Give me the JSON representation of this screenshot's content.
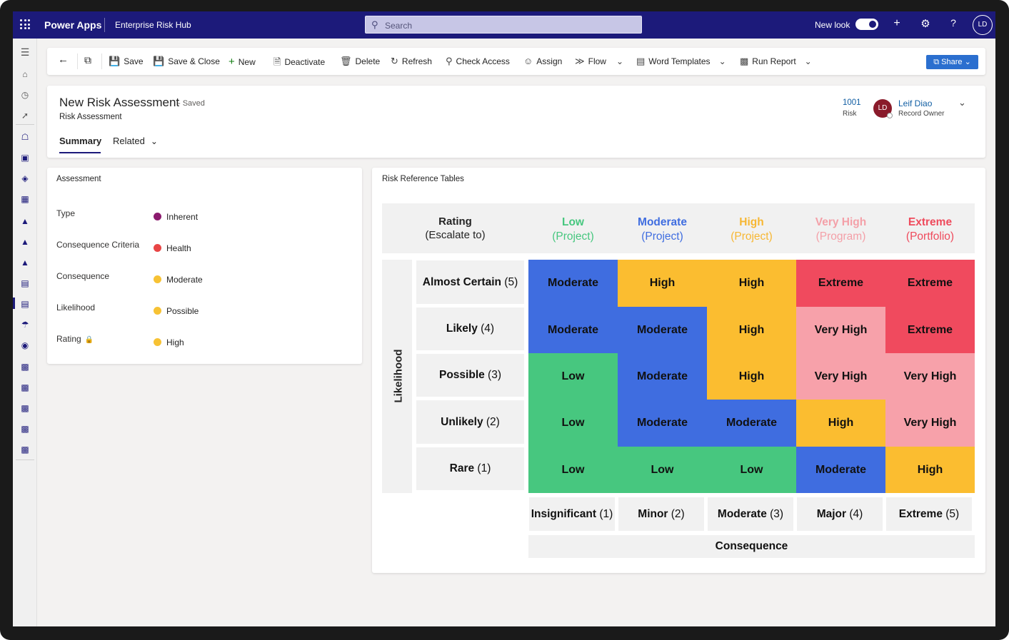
{
  "topbar": {
    "app_name": "Power Apps",
    "env_name": "Enterprise Risk Hub",
    "search_placeholder": "Search",
    "new_look_label": "New look",
    "new_look_on": true,
    "user_initials": "LD"
  },
  "commands": {
    "save": "Save",
    "save_close": "Save & Close",
    "new": "New",
    "deactivate": "Deactivate",
    "delete": "Delete",
    "refresh": "Refresh",
    "check_access": "Check Access",
    "assign": "Assign",
    "flow": "Flow",
    "word_templates": "Word Templates",
    "run_report": "Run Report",
    "share": "Share"
  },
  "record": {
    "title": "New Risk Assessment",
    "status": "- Saved",
    "entity": "Risk Assessment",
    "tabs": [
      "Summary",
      "Related"
    ],
    "number": "1001",
    "number_label": "Risk",
    "owner_initials": "LD",
    "owner_name": "Leif Diao",
    "owner_label": "Record Owner"
  },
  "assessment": {
    "title": "Assessment",
    "fields": [
      {
        "label": "Type",
        "value": "Inherent",
        "color": "#8b1a6e"
      },
      {
        "label": "Consequence Criteria",
        "value": "Health",
        "color": "#e84545"
      },
      {
        "label": "Consequence",
        "value": "Moderate",
        "color": "#f7c234"
      },
      {
        "label": "Likelihood",
        "value": "Possible",
        "color": "#f7c234"
      },
      {
        "label": "Rating",
        "value": "High",
        "color": "#f7c234"
      }
    ]
  },
  "risk_table": {
    "title": "Risk Reference Tables",
    "rating_header_1": "Rating",
    "rating_header_2": "(Escalate to)",
    "columns": [
      {
        "name": "Low",
        "sub": "(Project)",
        "color": "#47c77f"
      },
      {
        "name": "Moderate",
        "sub": "(Project)",
        "color": "#3f6de0"
      },
      {
        "name": "High",
        "sub": "(Project)",
        "color": "#f7b733"
      },
      {
        "name": "Very High",
        "sub": "(Program)",
        "color": "#f4a0a8"
      },
      {
        "name": "Extreme",
        "sub": "(Portfolio)",
        "color": "#ef4a5c"
      }
    ],
    "likelihood_label": "Likelihood",
    "rows": [
      {
        "name": "Almost Certain",
        "score": "(5)"
      },
      {
        "name": "Likely",
        "score": "(4)"
      },
      {
        "name": "Possible",
        "score": "(3)"
      },
      {
        "name": "Unlikely",
        "score": "(2)"
      },
      {
        "name": "Rare",
        "score": "(1)"
      }
    ],
    "consequences": [
      {
        "name": "Insignificant",
        "score": "(1)"
      },
      {
        "name": "Minor",
        "score": "(2)"
      },
      {
        "name": "Moderate",
        "score": "(3)"
      },
      {
        "name": "Major",
        "score": "(4)"
      },
      {
        "name": "Extreme",
        "score": "(5)"
      }
    ],
    "consequence_label": "Consequence",
    "matrix": [
      [
        "Moderate",
        "High",
        "High",
        "Extreme",
        "Extreme"
      ],
      [
        "Moderate",
        "Moderate",
        "High",
        "Very High",
        "Extreme"
      ],
      [
        "Low",
        "Moderate",
        "High",
        "Very High",
        "Very High"
      ],
      [
        "Low",
        "Moderate",
        "Moderate",
        "High",
        "Very High"
      ],
      [
        "Low",
        "Low",
        "Low",
        "Moderate",
        "High"
      ]
    ],
    "level_colors": {
      "Low": "#47c77f",
      "Moderate": "#3f6de0",
      "High": "#fbbd30",
      "Very High": "#f7a1aa",
      "Extreme": "#f04a5e"
    }
  }
}
